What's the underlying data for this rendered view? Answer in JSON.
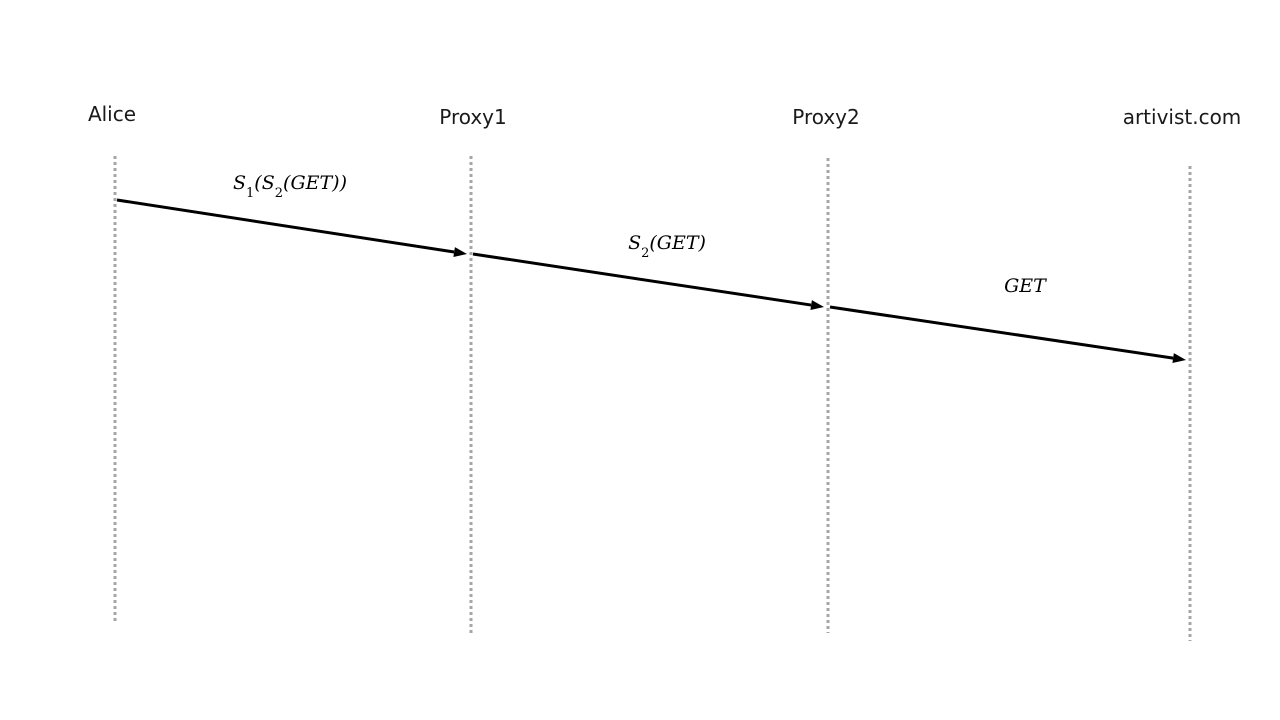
{
  "participants": [
    {
      "id": "alice",
      "label": "Alice"
    },
    {
      "id": "proxy1",
      "label": "Proxy1"
    },
    {
      "id": "proxy2",
      "label": "Proxy2"
    },
    {
      "id": "artivist",
      "label": "artivist.com"
    }
  ],
  "messages": [
    {
      "from": "alice",
      "to": "proxy1",
      "label": [
        {
          "t": "S"
        },
        {
          "t": "1",
          "sub": true
        },
        {
          "t": "("
        },
        {
          "t": "S"
        },
        {
          "t": "2",
          "sub": true
        },
        {
          "t": "(GET))"
        }
      ]
    },
    {
      "from": "proxy1",
      "to": "proxy2",
      "label": [
        {
          "t": "S"
        },
        {
          "t": "2",
          "sub": true
        },
        {
          "t": "(GET)"
        }
      ]
    },
    {
      "from": "proxy2",
      "to": "artivist",
      "label": [
        {
          "t": "GET"
        }
      ]
    }
  ],
  "colors": {
    "lifeline": "#a6a6a6",
    "arrow": "#000000",
    "text": "#1a1a1a"
  }
}
